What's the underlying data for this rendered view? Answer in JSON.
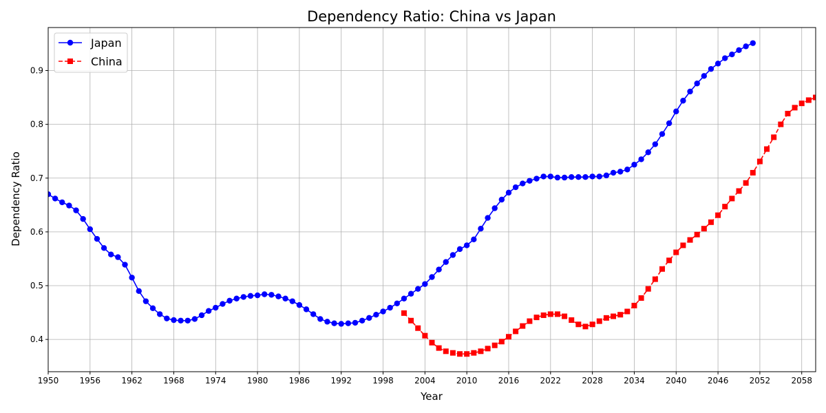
{
  "chart_data": {
    "type": "line",
    "title": "Dependency Ratio: China vs Japan",
    "xlabel": "Year",
    "ylabel": "Dependency Ratio",
    "xlim": [
      1950,
      2060
    ],
    "ylim": [
      0.34,
      0.98
    ],
    "xticks": [
      1950,
      1956,
      1962,
      1968,
      1974,
      1980,
      1986,
      1992,
      1998,
      2004,
      2010,
      2016,
      2022,
      2028,
      2034,
      2040,
      2046,
      2052,
      2058
    ],
    "yticks": [
      0.4,
      0.5,
      0.6,
      0.7,
      0.8,
      0.9
    ],
    "grid": true,
    "legend_position": "top-left",
    "series": [
      {
        "name": "Japan",
        "color": "#0000ff",
        "marker": "circle",
        "linestyle": "solid",
        "x_start": 1950,
        "values": [
          0.67,
          0.662,
          0.655,
          0.649,
          0.64,
          0.624,
          0.605,
          0.587,
          0.57,
          0.558,
          0.553,
          0.539,
          0.515,
          0.49,
          0.471,
          0.458,
          0.447,
          0.439,
          0.436,
          0.435,
          0.435,
          0.438,
          0.445,
          0.453,
          0.459,
          0.466,
          0.472,
          0.476,
          0.479,
          0.481,
          0.482,
          0.484,
          0.483,
          0.48,
          0.476,
          0.471,
          0.464,
          0.456,
          0.447,
          0.438,
          0.433,
          0.43,
          0.429,
          0.43,
          0.431,
          0.435,
          0.44,
          0.446,
          0.452,
          0.459,
          0.467,
          0.476,
          0.485,
          0.494,
          0.503,
          0.516,
          0.53,
          0.544,
          0.557,
          0.568,
          0.575,
          0.586,
          0.606,
          0.626,
          0.644,
          0.66,
          0.673,
          0.683,
          0.69,
          0.695,
          0.699,
          0.703,
          0.703,
          0.701,
          0.701,
          0.702,
          0.702,
          0.702,
          0.703,
          0.703,
          0.705,
          0.71,
          0.712,
          0.716,
          0.725,
          0.735,
          0.748,
          0.763,
          0.782,
          0.802,
          0.824,
          0.844,
          0.861,
          0.876,
          0.89,
          0.903,
          0.913,
          0.923,
          0.93,
          0.938,
          0.945,
          0.951
        ]
      },
      {
        "name": "China",
        "color": "#ff0000",
        "marker": "square",
        "linestyle": "dashed",
        "x_start": 2001,
        "values": [
          0.449,
          0.435,
          0.421,
          0.407,
          0.394,
          0.384,
          0.378,
          0.375,
          0.373,
          0.373,
          0.375,
          0.378,
          0.383,
          0.389,
          0.396,
          0.405,
          0.415,
          0.425,
          0.434,
          0.441,
          0.445,
          0.447,
          0.447,
          0.443,
          0.436,
          0.428,
          0.424,
          0.428,
          0.434,
          0.44,
          0.443,
          0.446,
          0.452,
          0.463,
          0.477,
          0.494,
          0.512,
          0.531,
          0.547,
          0.562,
          0.575,
          0.585,
          0.595,
          0.606,
          0.618,
          0.631,
          0.647,
          0.662,
          0.676,
          0.691,
          0.71,
          0.731,
          0.754,
          0.776,
          0.8,
          0.82,
          0.831,
          0.839,
          0.845,
          0.85
        ]
      }
    ]
  }
}
